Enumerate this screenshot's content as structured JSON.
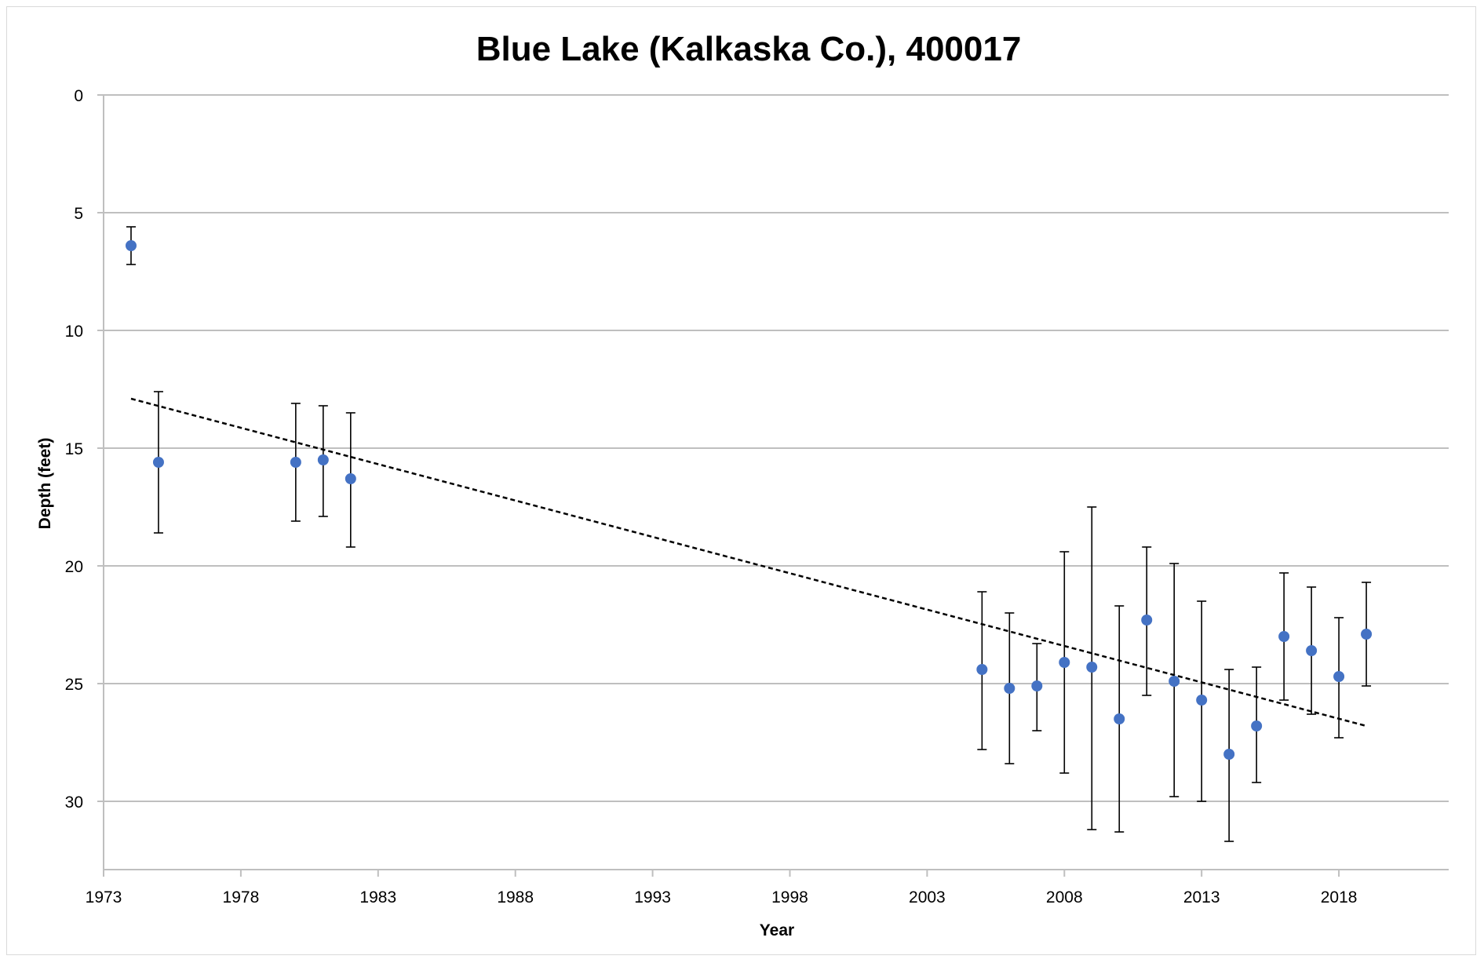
{
  "chart_data": {
    "type": "scatter",
    "title": "Blue Lake (Kalkaska Co.), 400017",
    "xlabel": "Year",
    "ylabel": "Depth (feet)",
    "xlim": [
      1973,
      2022
    ],
    "ylim": [
      0,
      33
    ],
    "y_inverted": true,
    "x_ticks": [
      1973,
      1978,
      1983,
      1988,
      1993,
      1998,
      2003,
      2008,
      2013,
      2018
    ],
    "y_ticks": [
      0,
      5,
      10,
      15,
      20,
      25,
      30
    ],
    "grid": "horizontal",
    "marker_color": "#4472c4",
    "error_bar_color": "#000000",
    "trendline": {
      "style": "dashed",
      "color": "#000000",
      "x": [
        1974,
        2019
      ],
      "y": [
        12.9,
        26.8
      ]
    },
    "points": [
      {
        "x": 1974,
        "y": 6.4,
        "lo": 5.6,
        "hi": 7.2
      },
      {
        "x": 1975,
        "y": 15.6,
        "lo": 12.6,
        "hi": 18.6
      },
      {
        "x": 1980,
        "y": 15.6,
        "lo": 13.1,
        "hi": 18.1
      },
      {
        "x": 1981,
        "y": 15.5,
        "lo": 13.2,
        "hi": 17.9
      },
      {
        "x": 1982,
        "y": 16.3,
        "lo": 13.5,
        "hi": 19.2
      },
      {
        "x": 2005,
        "y": 24.4,
        "lo": 21.1,
        "hi": 27.8
      },
      {
        "x": 2006,
        "y": 25.2,
        "lo": 22.0,
        "hi": 28.4
      },
      {
        "x": 2007,
        "y": 25.1,
        "lo": 23.3,
        "hi": 27.0
      },
      {
        "x": 2008,
        "y": 24.1,
        "lo": 19.4,
        "hi": 28.8
      },
      {
        "x": 2009,
        "y": 24.3,
        "lo": 17.5,
        "hi": 31.2
      },
      {
        "x": 2010,
        "y": 26.5,
        "lo": 21.7,
        "hi": 31.3
      },
      {
        "x": 2011,
        "y": 22.3,
        "lo": 19.2,
        "hi": 25.5
      },
      {
        "x": 2012,
        "y": 24.9,
        "lo": 19.9,
        "hi": 29.8
      },
      {
        "x": 2013,
        "y": 25.7,
        "lo": 21.5,
        "hi": 30.0
      },
      {
        "x": 2014,
        "y": 28.0,
        "lo": 24.4,
        "hi": 31.7
      },
      {
        "x": 2015,
        "y": 26.8,
        "lo": 24.3,
        "hi": 29.2
      },
      {
        "x": 2016,
        "y": 23.0,
        "lo": 20.3,
        "hi": 25.7
      },
      {
        "x": 2017,
        "y": 23.6,
        "lo": 20.9,
        "hi": 26.3
      },
      {
        "x": 2018,
        "y": 24.7,
        "lo": 22.2,
        "hi": 27.3
      },
      {
        "x": 2019,
        "y": 22.9,
        "lo": 20.7,
        "hi": 25.1
      }
    ]
  }
}
